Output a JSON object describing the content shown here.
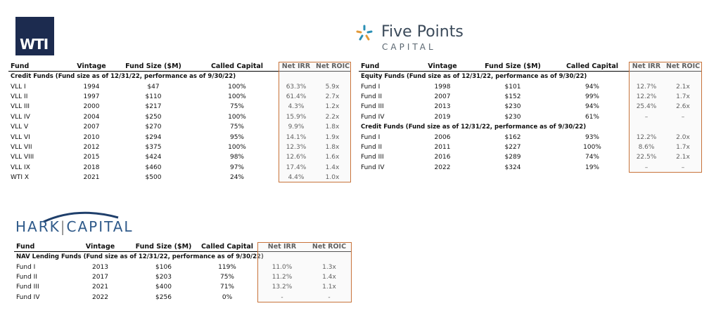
{
  "logos": {
    "wti": "WTI",
    "five_points": {
      "name": "Five Points",
      "sub": "CAPITAL"
    },
    "hark": {
      "left": "HARK",
      "right": "CAPITAL"
    }
  },
  "tables": [
    {
      "columns": [
        "Fund",
        "Vintage",
        "Fund Size ($M)",
        "Called Capital",
        "Net IRR",
        "Net ROIC"
      ],
      "sections": [
        {
          "title": "Credit Funds (Fund size as of 12/31/22, performance as of 9/30/22)",
          "rows": [
            [
              "VLL I",
              "1994",
              "$47",
              "100%",
              "63.3%",
              "5.9x"
            ],
            [
              "VLL II",
              "1997",
              "$110",
              "100%",
              "61.4%",
              "2.7x"
            ],
            [
              "VLL III",
              "2000",
              "$217",
              "75%",
              "4.3%",
              "1.2x"
            ],
            [
              "VLL IV",
              "2004",
              "$250",
              "100%",
              "15.9%",
              "2.2x"
            ],
            [
              "VLL V",
              "2007",
              "$270",
              "75%",
              "9.9%",
              "1.8x"
            ],
            [
              "VLL VI",
              "2010",
              "$294",
              "95%",
              "14.1%",
              "1.9x"
            ],
            [
              "VLL VII",
              "2012",
              "$375",
              "100%",
              "12.3%",
              "1.8x"
            ],
            [
              "VLL VIII",
              "2015",
              "$424",
              "98%",
              "12.6%",
              "1.6x"
            ],
            [
              "VLL IX",
              "2018",
              "$460",
              "97%",
              "17.4%",
              "1.4x"
            ],
            [
              "WTI X",
              "2021",
              "$500",
              "24%",
              "4.4%",
              "1.0x"
            ]
          ]
        }
      ]
    },
    {
      "columns": [
        "Fund",
        "Vintage",
        "Fund Size ($M)",
        "Called Capital",
        "Net IRR",
        "Net ROIC"
      ],
      "sections": [
        {
          "title": "Equity Funds (Fund size as of 12/31/22, performance as of 9/30/22)",
          "rows": [
            [
              "Fund I",
              "1998",
              "$101",
              "94%",
              "12.7%",
              "2.1x"
            ],
            [
              "Fund II",
              "2007",
              "$152",
              "99%",
              "12.2%",
              "1.7x"
            ],
            [
              "Fund III",
              "2013",
              "$230",
              "94%",
              "25.4%",
              "2.6x"
            ],
            [
              "Fund IV",
              "2019",
              "$230",
              "61%",
              "–",
              "–"
            ]
          ]
        },
        {
          "title": "Credit Funds (Fund size as of 12/31/22, performance as of 9/30/22)",
          "rows": [
            [
              "Fund I",
              "2006",
              "$162",
              "93%",
              "12.2%",
              "2.0x"
            ],
            [
              "Fund II",
              "2011",
              "$227",
              "100%",
              "8.6%",
              "1.7x"
            ],
            [
              "Fund III",
              "2016",
              "$289",
              "74%",
              "22.5%",
              "2.1x"
            ],
            [
              "Fund IV",
              "2022",
              "$324",
              "19%",
              "–",
              "–"
            ]
          ]
        }
      ]
    },
    {
      "columns": [
        "Fund",
        "Vintage",
        "Fund Size ($M)",
        "Called Capital",
        "Net IRR",
        "Net ROIC"
      ],
      "sections": [
        {
          "title": "NAV Lending Funds (Fund size as of 12/31/22, performance as of 9/30/22)",
          "rows": [
            [
              "Fund I",
              "2013",
              "$106",
              "119%",
              "11.0%",
              "1.3x"
            ],
            [
              "Fund II",
              "2017",
              "$203",
              "75%",
              "11.2%",
              "1.4x"
            ],
            [
              "Fund III",
              "2021",
              "$400",
              "71%",
              "13.2%",
              "1.1x"
            ],
            [
              "Fund IV",
              "2022",
              "$256",
              "0%",
              "-",
              "-"
            ]
          ]
        }
      ]
    }
  ]
}
